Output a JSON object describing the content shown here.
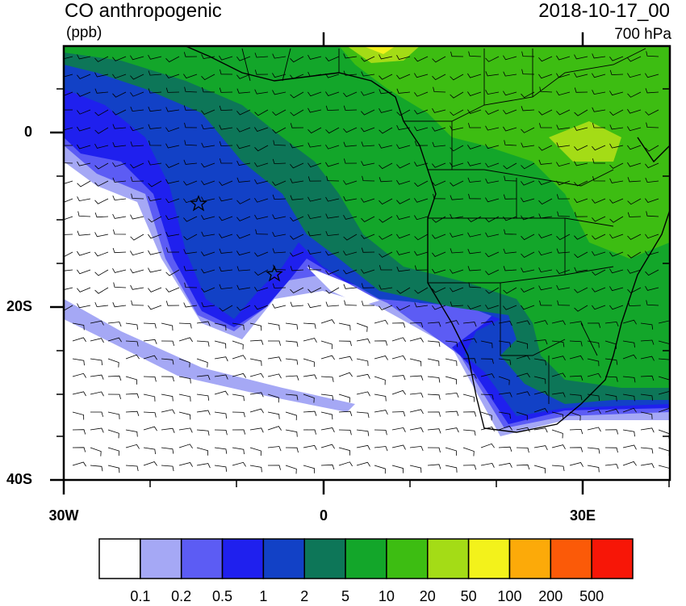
{
  "title": "CO anthropogenic",
  "units": "(ppb)",
  "date": "2018-10-17_00",
  "level": "700 hPa",
  "y_ticks": [
    "0",
    "20S",
    "40S"
  ],
  "x_ticks": [
    "30W",
    "0",
    "30E"
  ],
  "colorbar": {
    "labels": [
      "0.1",
      "0.2",
      "0.5",
      "1",
      "2",
      "5",
      "10",
      "20",
      "50",
      "100",
      "200",
      "500"
    ],
    "colors": [
      "#ffffff",
      "#a5a8f5",
      "#5c5cf4",
      "#1f20ee",
      "#1241c6",
      "#0d7658",
      "#13a62a",
      "#3dbd12",
      "#a4dc16",
      "#f3f21b",
      "#fcaa09",
      "#fb5a08",
      "#f71607"
    ]
  },
  "markers": [
    "star-marker-1",
    "star-marker-2"
  ]
}
